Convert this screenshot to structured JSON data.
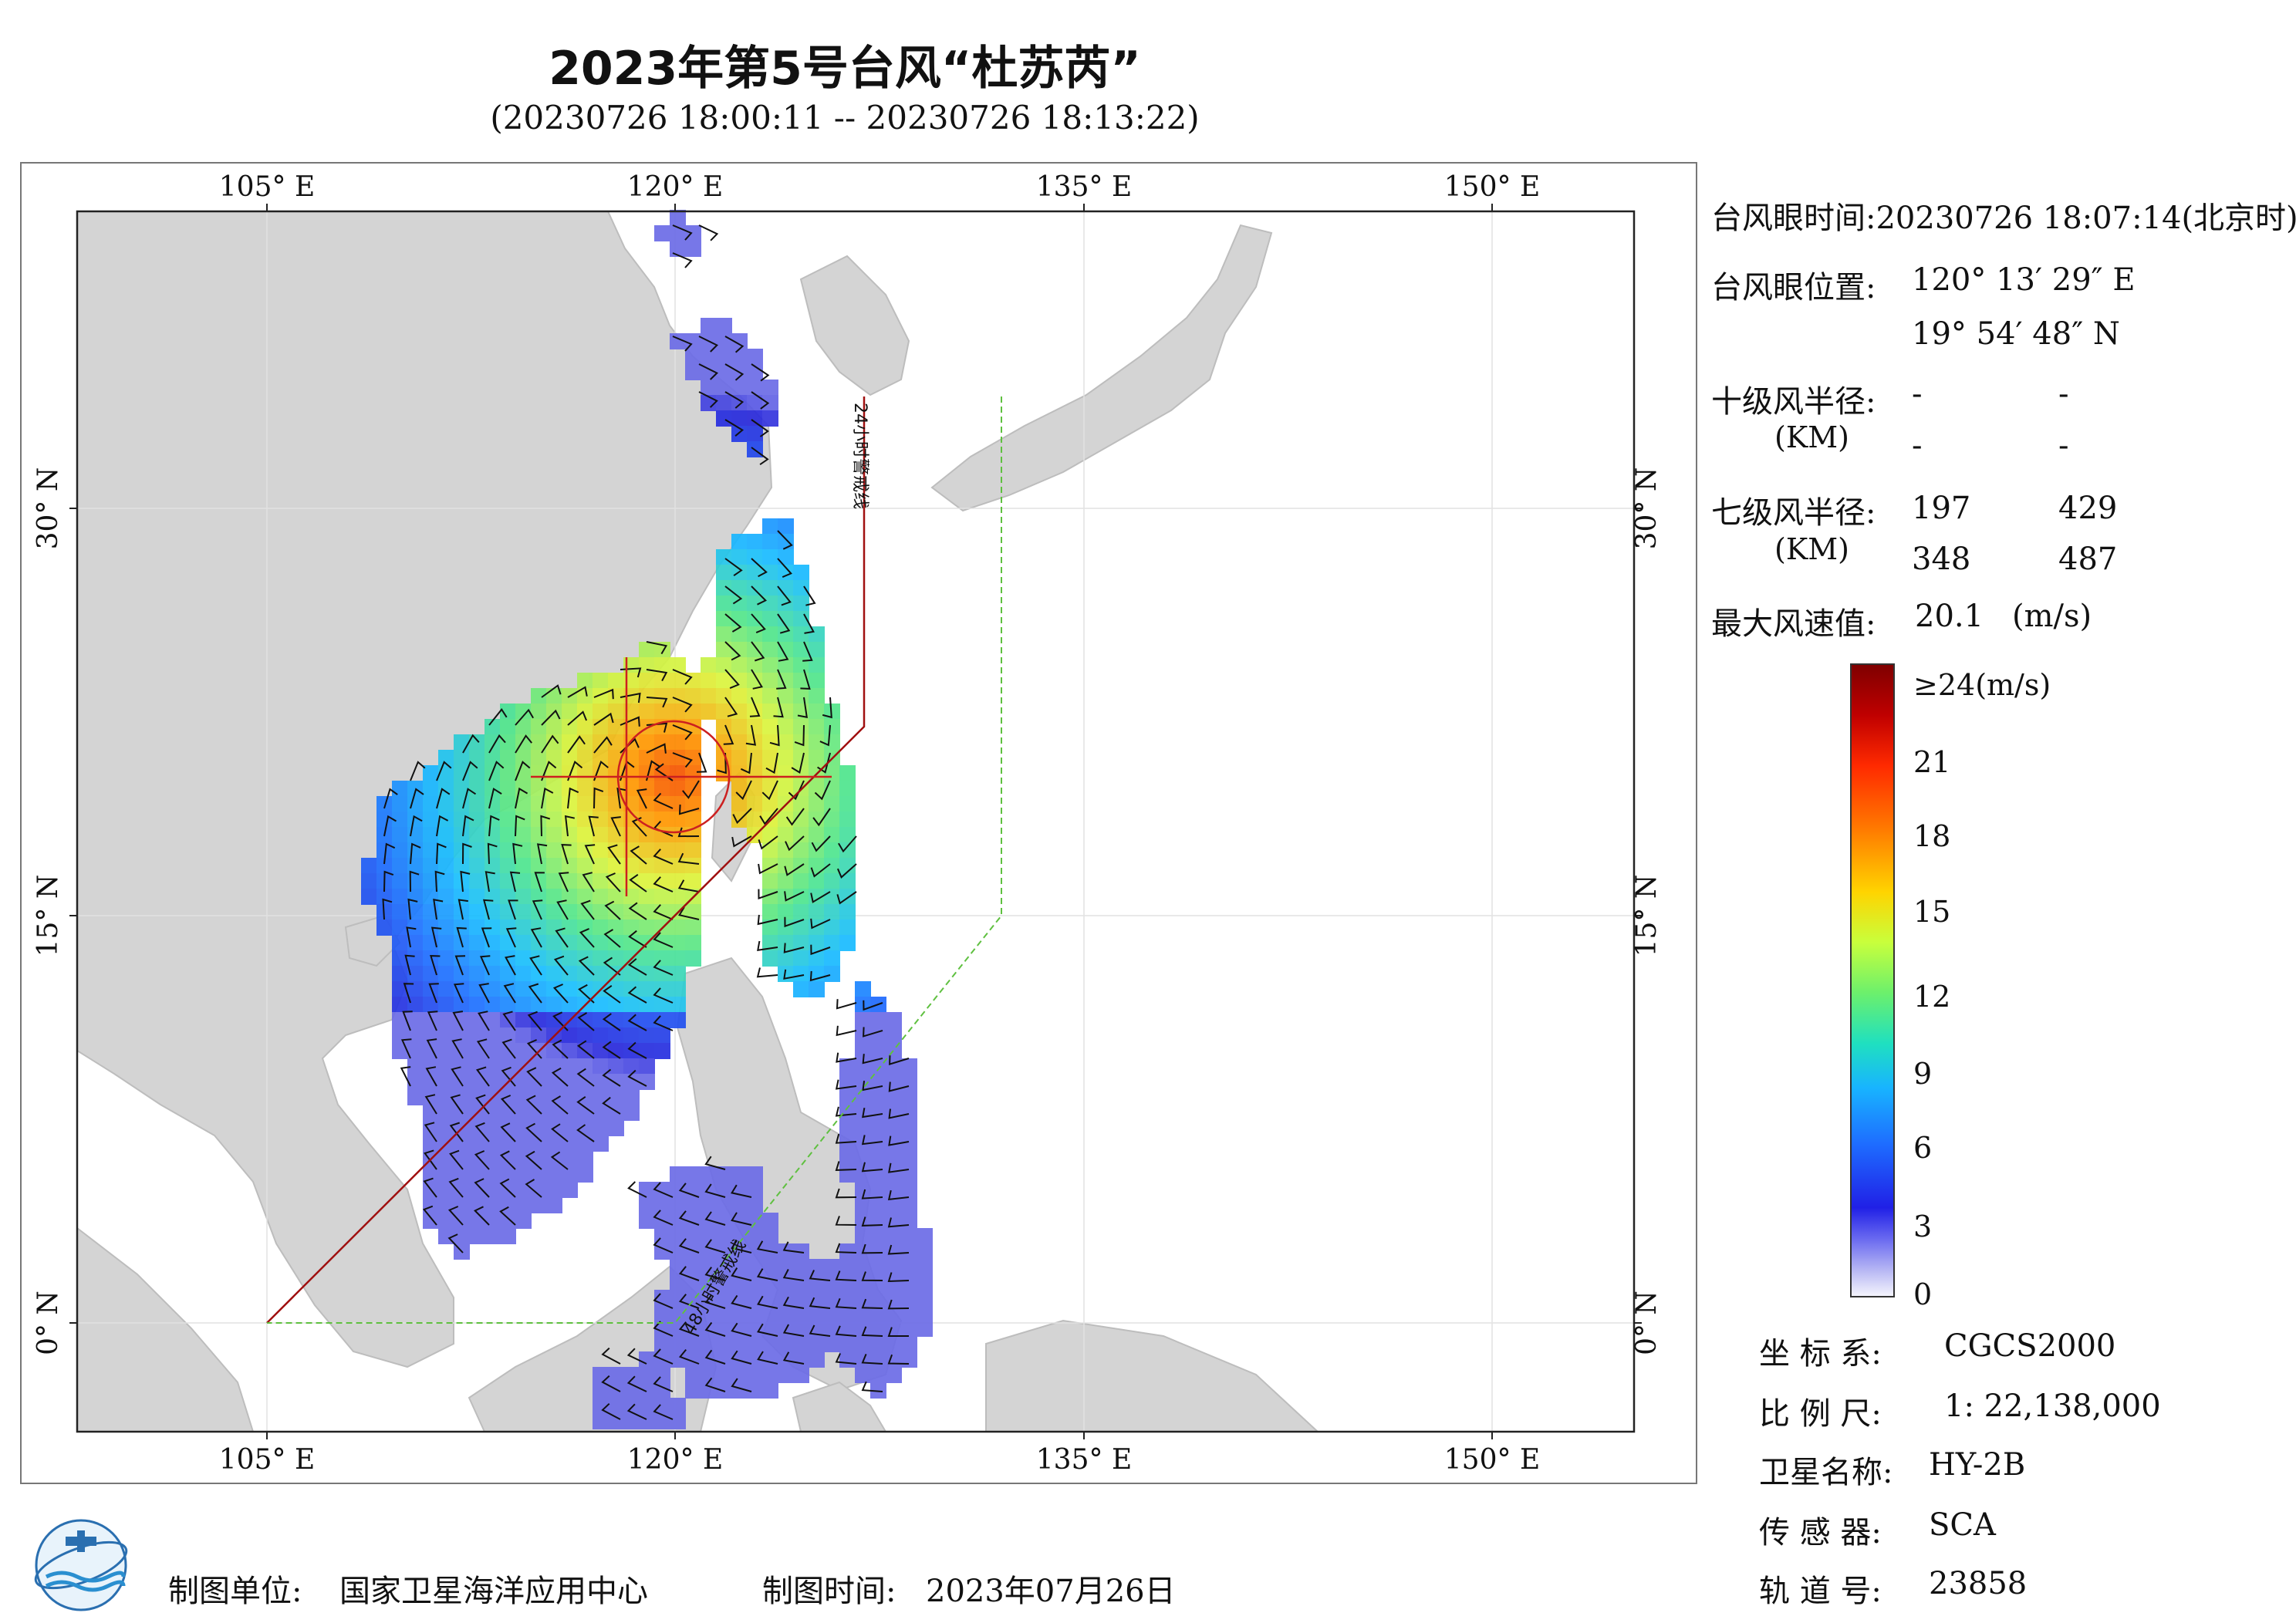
{
  "title": "2023年第5号台风“杜苏芮”",
  "subtitle": "(20230726 18:00:11 -- 20230726 18:13:22)",
  "map": {
    "lon_labels": [
      "105° E",
      "120° E",
      "135° E",
      "150° E"
    ],
    "lat_labels": [
      "30° N",
      "15° N",
      "0° N"
    ],
    "line_24h_label": "24小时警戒线",
    "line_48h_label": "48小时警戒线",
    "colors": {
      "land": "#d4d4d4",
      "sea": "#ffffff",
      "warning_24h": "#a01010",
      "warning_48h": "#5fc040",
      "typhoon_center": "#cc2020"
    }
  },
  "info": {
    "eye_time_label": "台风眼时间:",
    "eye_time_value": "20230726 18:07:14(北京时)",
    "eye_pos_label": "台风眼位置:",
    "eye_lon": "120° 13′ 29″ E",
    "eye_lat": "19° 54′ 48″ N",
    "r10_label": "十级风半径:",
    "r10_unit": "(KM)",
    "r10_values": [
      "-",
      "-",
      "-",
      "-"
    ],
    "r7_label": "七级风半径:",
    "r7_unit": "(KM)",
    "r7_values": [
      "197",
      "429",
      "348",
      "487"
    ],
    "max_wind_label": "最大风速值:",
    "max_wind_value": "20.1",
    "max_wind_unit": "(m/s)"
  },
  "colorbar": {
    "labels": [
      "≥24(m/s)",
      "21",
      "18",
      "15",
      "12",
      "9",
      "6",
      "3",
      "0"
    ]
  },
  "meta": {
    "crs_label": "坐 标 系:",
    "crs_value": "CGCS2000",
    "scale_label": "比 例 尺:",
    "scale_value": "1: 22,138,000",
    "satellite_label": "卫星名称:",
    "satellite_value": "HY-2B",
    "sensor_label": "传 感 器:",
    "sensor_value": "SCA",
    "orbit_label": "轨 道 号:",
    "orbit_value": "23858"
  },
  "footer": {
    "unit_label": "制图单位:",
    "unit_value": "国家卫星海洋应用中心",
    "time_label": "制图时间:",
    "time_value": "2023年07月26日"
  }
}
